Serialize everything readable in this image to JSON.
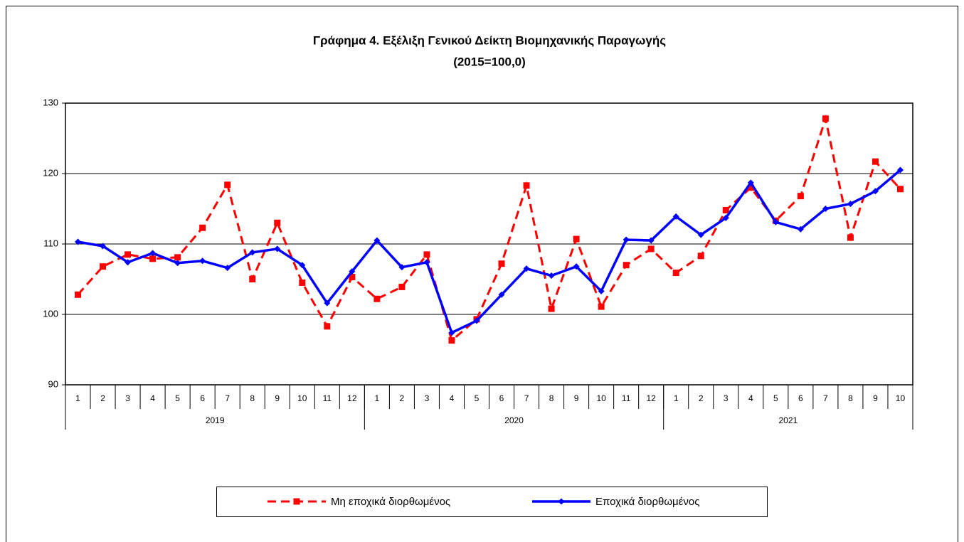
{
  "chart_data": {
    "type": "line",
    "title": "Γράφημα 4. Εξέλιξη Γενικού Δείκτη Βιομηχανικής Παραγωγής",
    "subtitle": "(2015=100,0)",
    "categories": [
      "1",
      "2",
      "3",
      "4",
      "5",
      "6",
      "7",
      "8",
      "9",
      "10",
      "11",
      "12",
      "1",
      "2",
      "3",
      "4",
      "5",
      "6",
      "7",
      "8",
      "9",
      "10",
      "11",
      "12",
      "1",
      "2",
      "3",
      "4",
      "5",
      "6",
      "7",
      "8",
      "9",
      "10"
    ],
    "groups": [
      "2019",
      "2020",
      "2021"
    ],
    "series": [
      {
        "name": "Μη εποχικά διορθωμένος",
        "color": "#ff0000",
        "dash": true,
        "marker": "square",
        "values": [
          102.8,
          106.8,
          108.5,
          107.9,
          108.1,
          112.3,
          118.4,
          105.0,
          113.0,
          104.5,
          98.3,
          105.3,
          102.2,
          103.9,
          108.5,
          96.3,
          99.3,
          107.2,
          118.3,
          100.8,
          110.7,
          101.1,
          107.0,
          109.3,
          105.9,
          108.3,
          114.8,
          118.0,
          113.3,
          116.8,
          127.8,
          110.9,
          121.7,
          117.8
        ]
      },
      {
        "name": "Εποχικά διορθωμένος",
        "color": "#0000ff",
        "dash": false,
        "marker": "diamond",
        "values": [
          110.3,
          109.7,
          107.4,
          108.7,
          107.3,
          107.6,
          106.6,
          108.8,
          109.3,
          107.0,
          101.6,
          106.1,
          110.5,
          106.7,
          107.4,
          97.4,
          99.1,
          102.8,
          106.5,
          105.5,
          106.8,
          103.3,
          110.6,
          110.5,
          113.9,
          111.3,
          113.7,
          118.7,
          113.1,
          112.1,
          115.0,
          115.7,
          117.5,
          120.5
        ]
      }
    ],
    "ylim": [
      90,
      130
    ],
    "yticks": [
      90,
      100,
      110,
      120,
      130
    ],
    "grid": true,
    "legend": "bottom"
  }
}
